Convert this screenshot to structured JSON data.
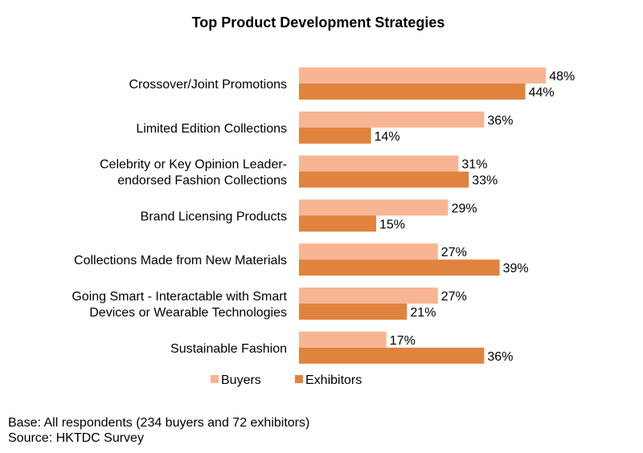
{
  "chart_data": {
    "type": "bar",
    "orientation": "horizontal",
    "title": "Top Product Development Strategies",
    "categories": [
      [
        "Crossover/Joint Promotions"
      ],
      [
        "Limited Edition Collections"
      ],
      [
        "Celebrity or Key Opinion Leader-",
        "endorsed Fashion Collections"
      ],
      [
        "Brand Licensing Products"
      ],
      [
        "Collections Made from New Materials"
      ],
      [
        "Going Smart - Interactable with Smart",
        "Devices or Wearable Technologies"
      ],
      [
        "Sustainable Fashion"
      ]
    ],
    "series": [
      {
        "name": "Buyers",
        "color": "#F8B593",
        "values": [
          48,
          36,
          31,
          29,
          27,
          27,
          17
        ]
      },
      {
        "name": "Exhibitors",
        "color": "#E0833E",
        "values": [
          44,
          14,
          33,
          15,
          39,
          21,
          36
        ]
      }
    ],
    "value_suffix": "%",
    "xlim": [
      0,
      50
    ],
    "grid": false,
    "legend": "bottom"
  },
  "notes": {
    "base": "Base: All respondents (234 buyers and 72 exhibitors)",
    "source": "Source: HKTDC Survey"
  }
}
